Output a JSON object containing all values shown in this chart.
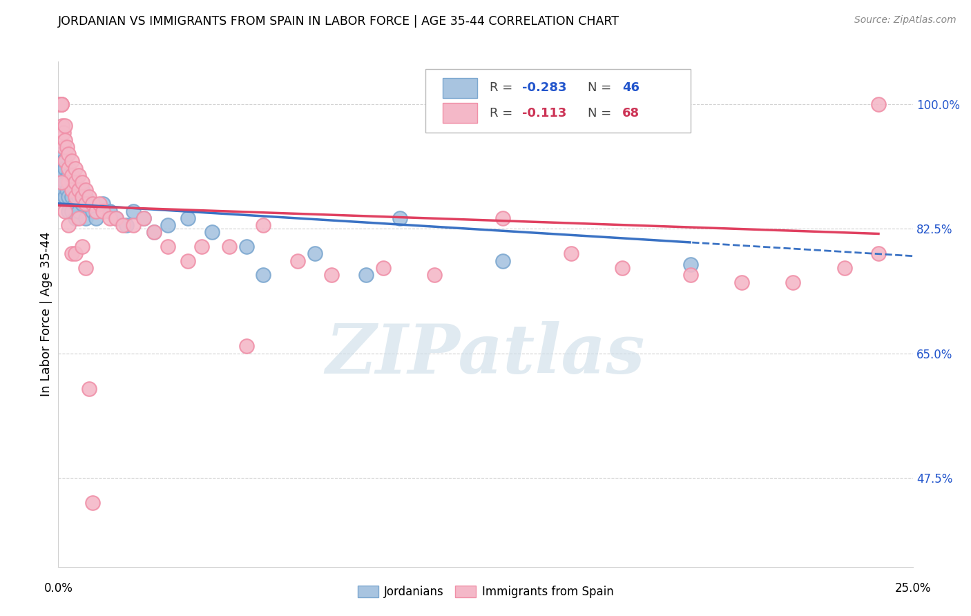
{
  "title": "JORDANIAN VS IMMIGRANTS FROM SPAIN IN LABOR FORCE | AGE 35-44 CORRELATION CHART",
  "source": "Source: ZipAtlas.com",
  "ylabel": "In Labor Force | Age 35-44",
  "yticks": [
    1.0,
    0.825,
    0.65,
    0.475
  ],
  "ytick_labels": [
    "100.0%",
    "82.5%",
    "65.0%",
    "47.5%"
  ],
  "xlim": [
    0.0,
    0.25
  ],
  "ylim": [
    0.35,
    1.06
  ],
  "blue_R": "-0.283",
  "blue_N": "46",
  "pink_R": "-0.113",
  "pink_N": "68",
  "blue_color": "#a8c4e0",
  "pink_color": "#f4b8c8",
  "blue_edge_color": "#7da8d0",
  "pink_edge_color": "#f090a8",
  "blue_line_color": "#3a72c4",
  "pink_line_color": "#e04060",
  "tick_color": "#2255cc",
  "grid_color": "#d0d0d0",
  "watermark_text": "ZIPatlas",
  "watermark_color": "#ccdde8",
  "blue_label": "Jordanians",
  "pink_label": "Immigrants from Spain",
  "blue_points_x": [
    0.0005,
    0.0008,
    0.001,
    0.001,
    0.0012,
    0.0015,
    0.0015,
    0.002,
    0.002,
    0.002,
    0.0025,
    0.003,
    0.003,
    0.003,
    0.004,
    0.004,
    0.004,
    0.005,
    0.005,
    0.005,
    0.006,
    0.006,
    0.007,
    0.007,
    0.008,
    0.008,
    0.009,
    0.01,
    0.011,
    0.013,
    0.015,
    0.017,
    0.02,
    0.022,
    0.025,
    0.028,
    0.032,
    0.038,
    0.045,
    0.055,
    0.06,
    0.075,
    0.09,
    0.1,
    0.13,
    0.185
  ],
  "blue_points_y": [
    0.91,
    0.89,
    0.93,
    0.87,
    0.9,
    0.88,
    0.92,
    0.89,
    0.87,
    0.91,
    0.88,
    0.9,
    0.87,
    0.85,
    0.89,
    0.87,
    0.85,
    0.88,
    0.86,
    0.84,
    0.87,
    0.85,
    0.88,
    0.86,
    0.87,
    0.84,
    0.86,
    0.85,
    0.84,
    0.86,
    0.85,
    0.84,
    0.83,
    0.85,
    0.84,
    0.82,
    0.83,
    0.84,
    0.82,
    0.8,
    0.76,
    0.79,
    0.76,
    0.84,
    0.78,
    0.775
  ],
  "pink_points_x": [
    0.0003,
    0.0005,
    0.0007,
    0.001,
    0.001,
    0.001,
    0.0012,
    0.0015,
    0.0015,
    0.002,
    0.002,
    0.002,
    0.0025,
    0.003,
    0.003,
    0.003,
    0.004,
    0.004,
    0.004,
    0.005,
    0.005,
    0.005,
    0.006,
    0.006,
    0.007,
    0.007,
    0.008,
    0.008,
    0.009,
    0.01,
    0.011,
    0.012,
    0.013,
    0.015,
    0.017,
    0.019,
    0.022,
    0.025,
    0.028,
    0.032,
    0.038,
    0.042,
    0.05,
    0.055,
    0.06,
    0.07,
    0.08,
    0.095,
    0.11,
    0.13,
    0.15,
    0.165,
    0.185,
    0.2,
    0.215,
    0.23,
    0.24,
    0.001,
    0.002,
    0.003,
    0.004,
    0.005,
    0.006,
    0.007,
    0.008,
    0.009,
    0.01,
    0.24
  ],
  "pink_points_y": [
    1.0,
    1.0,
    1.0,
    1.0,
    1.0,
    1.0,
    0.97,
    0.96,
    0.94,
    0.97,
    0.95,
    0.92,
    0.94,
    0.93,
    0.91,
    0.89,
    0.92,
    0.9,
    0.88,
    0.91,
    0.89,
    0.87,
    0.9,
    0.88,
    0.89,
    0.87,
    0.88,
    0.86,
    0.87,
    0.86,
    0.85,
    0.86,
    0.85,
    0.84,
    0.84,
    0.83,
    0.83,
    0.84,
    0.82,
    0.8,
    0.78,
    0.8,
    0.8,
    0.66,
    0.83,
    0.78,
    0.76,
    0.77,
    0.76,
    0.84,
    0.79,
    0.77,
    0.76,
    0.75,
    0.75,
    0.77,
    0.79,
    0.89,
    0.85,
    0.83,
    0.79,
    0.79,
    0.84,
    0.8,
    0.77,
    0.6,
    0.44,
    1.0
  ]
}
